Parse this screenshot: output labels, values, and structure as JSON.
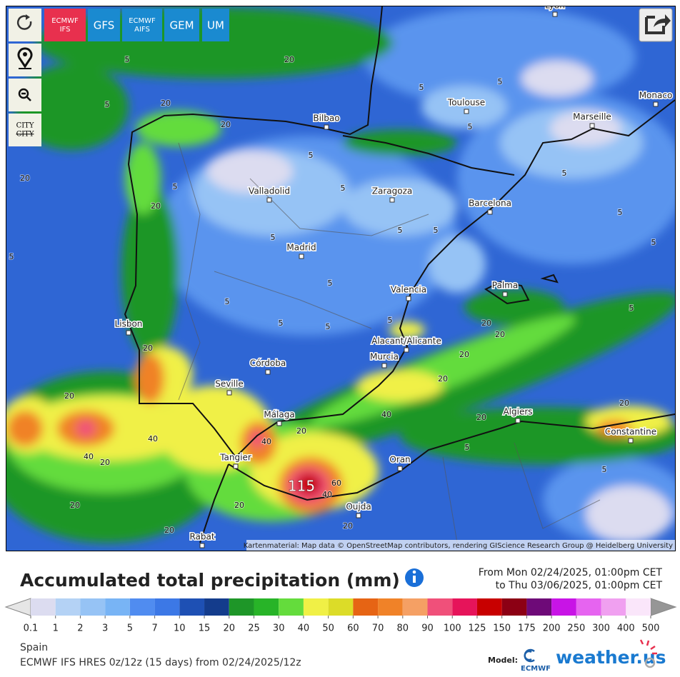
{
  "toolbar": {
    "models": [
      {
        "lines": [
          "ECMWF",
          "IFS"
        ],
        "color": "#e8304e"
      },
      {
        "lines": [
          "GFS"
        ],
        "color": "#1a8ad0"
      },
      {
        "lines": [
          "ECMWF",
          "AIFS"
        ],
        "color": "#1a8ad0"
      },
      {
        "lines": [
          "GEM"
        ],
        "color": "#1a8ad0"
      },
      {
        "lines": [
          "UM"
        ],
        "color": "#1a8ad0"
      }
    ],
    "city_toggle": [
      "CITY",
      "CITY"
    ]
  },
  "map": {
    "cities": [
      "Lyon",
      "Monaco",
      "Toulouse",
      "Marseille",
      "Bilbao",
      "Valladolid",
      "Zaragoza",
      "Barcelona",
      "Madrid",
      "Palma",
      "Valencia",
      "Lisbon",
      "Alacant/Alicante",
      "Córdoba",
      "Murcia",
      "Seville",
      "Málaga",
      "Algiers",
      "Constantine",
      "Tangier",
      "Oran",
      "Oujda",
      "Rabat"
    ],
    "contour_labels": [
      "5",
      "5",
      "5",
      "5",
      "5",
      "5",
      "5",
      "5",
      "5",
      "5",
      "5",
      "5",
      "5",
      "5",
      "5",
      "5",
      "5",
      "5",
      "5",
      "5",
      "5",
      "5",
      "5",
      "20",
      "20",
      "20",
      "20",
      "20",
      "20",
      "20",
      "20",
      "20",
      "20",
      "20",
      "20",
      "20",
      "20",
      "20",
      "20",
      "20",
      "20",
      "20",
      "40",
      "40",
      "40",
      "40",
      "40",
      "60",
      "115"
    ],
    "attribution": "Kartenmaterial: Map data © OpenStreetMap contributors, rendering GIScience Research Group @ Heidelberg University"
  },
  "legend": {
    "title": "Accumulated total precipitation (mm)",
    "from": "From Mon 02/24/2025, 01:00pm CET",
    "to": "to Thu 03/06/2025, 01:00pm CET",
    "scale": {
      "values": [
        0.1,
        1,
        2,
        3,
        5,
        7,
        10,
        15,
        20,
        25,
        30,
        40,
        50,
        60,
        70,
        80,
        90,
        100,
        125,
        150,
        175,
        200,
        250,
        300,
        400,
        500
      ],
      "colors": [
        "#dcdcf0",
        "#b4d2f5",
        "#96c3f5",
        "#78b4f5",
        "#508cf0",
        "#3c78e6",
        "#1e50b4",
        "#143c8c",
        "#1e9628",
        "#28b428",
        "#64dc3c",
        "#f0f046",
        "#dcdc28",
        "#e66414",
        "#f08228",
        "#f5a064",
        "#f0507a",
        "#e6145a",
        "#c80000",
        "#8c0014",
        "#6e0a78",
        "#c814e6",
        "#e664f0",
        "#f0a0f0",
        "#fae6fa"
      ],
      "under_color": "#e6e6e6",
      "over_color": "#969696"
    }
  },
  "footer": {
    "region": "Spain",
    "model_run": "ECMWF IFS HRES 0z/12z (15 days) from 02/24/2025/12z",
    "model_label": "Model:",
    "logo_ecmwf": "ECMWF",
    "logo_site": "weather.us"
  }
}
